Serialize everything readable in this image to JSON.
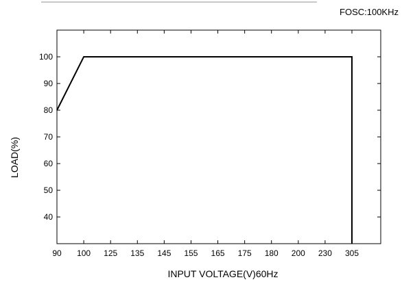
{
  "chart_data": {
    "type": "line",
    "annotation": "FOSC:100KHz",
    "xlabel": "INPUT VOLTAGE(V)60Hz",
    "ylabel": "LOAD(%)",
    "x_ticks": [
      "90",
      "100",
      "125",
      "135",
      "145",
      "155",
      "165",
      "175",
      "180",
      "200",
      "230",
      "305"
    ],
    "y_ticks": [
      40,
      50,
      60,
      70,
      80,
      90,
      100
    ],
    "ylim": [
      30,
      110
    ],
    "grid": false,
    "series": [
      {
        "points": [
          {
            "x": "90",
            "y": 80
          },
          {
            "x": "100",
            "y": 100
          },
          {
            "x": "305",
            "y": 100
          },
          {
            "x": "305",
            "y": 30
          }
        ]
      }
    ]
  }
}
